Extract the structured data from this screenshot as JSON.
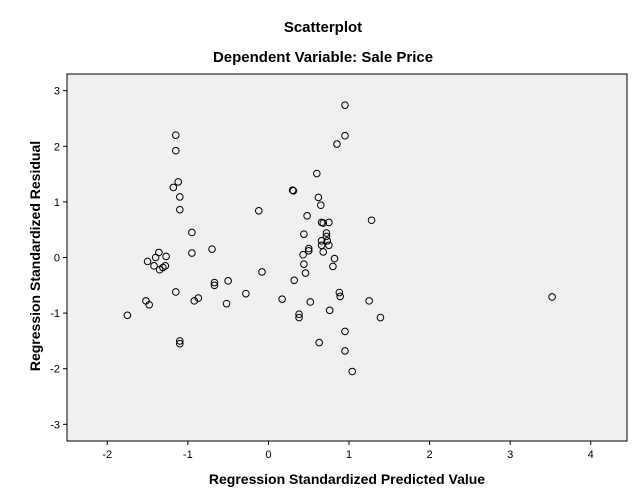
{
  "chart_data": {
    "type": "scatter",
    "title": "Scatterplot",
    "subtitle": "Dependent Variable: Sale Price",
    "xlabel": "Regression Standardized Predicted Value",
    "ylabel": "Regression Standardized Residual",
    "xlim": [
      -2.5,
      4.45
    ],
    "ylim": [
      -3.3,
      3.3
    ],
    "xticks": [
      "-2",
      "-1",
      "0",
      "1",
      "2",
      "3",
      "4"
    ],
    "yticks": [
      "3",
      "2",
      "1",
      "0",
      "-1",
      "-2",
      "-3"
    ],
    "grid": false,
    "background": "#f0f0f0",
    "marker_color": "#000000",
    "points": [
      [
        -1.75,
        -1.04
      ],
      [
        -1.52,
        -0.78
      ],
      [
        -1.48,
        -0.85
      ],
      [
        -1.5,
        -0.07
      ],
      [
        -1.42,
        -0.15
      ],
      [
        -1.4,
        0.0
      ],
      [
        -1.36,
        0.09
      ],
      [
        -1.35,
        -0.22
      ],
      [
        -1.31,
        -0.18
      ],
      [
        -1.28,
        -0.15
      ],
      [
        -1.27,
        0.02
      ],
      [
        -1.18,
        1.26
      ],
      [
        -1.15,
        2.2
      ],
      [
        -1.15,
        1.92
      ],
      [
        -1.15,
        -0.62
      ],
      [
        -1.12,
        1.36
      ],
      [
        -1.1,
        1.09
      ],
      [
        -1.1,
        0.86
      ],
      [
        -1.1,
        -1.5
      ],
      [
        -1.1,
        -1.55
      ],
      [
        -0.95,
        0.45
      ],
      [
        -0.95,
        0.08
      ],
      [
        -0.92,
        -0.78
      ],
      [
        -0.87,
        -0.73
      ],
      [
        -0.7,
        0.15
      ],
      [
        -0.67,
        -0.45
      ],
      [
        -0.67,
        -0.5
      ],
      [
        -0.52,
        -0.83
      ],
      [
        -0.5,
        -0.42
      ],
      [
        -0.28,
        -0.65
      ],
      [
        -0.12,
        0.84
      ],
      [
        -0.08,
        -0.26
      ],
      [
        0.17,
        -0.75
      ],
      [
        0.3,
        1.21
      ],
      [
        0.31,
        1.2
      ],
      [
        0.32,
        -0.41
      ],
      [
        0.38,
        -1.02
      ],
      [
        0.38,
        -1.08
      ],
      [
        0.43,
        0.05
      ],
      [
        0.44,
        0.42
      ],
      [
        0.44,
        -0.12
      ],
      [
        0.46,
        -0.28
      ],
      [
        0.48,
        0.75
      ],
      [
        0.5,
        0.16
      ],
      [
        0.5,
        0.12
      ],
      [
        0.52,
        -0.8
      ],
      [
        0.6,
        1.51
      ],
      [
        0.62,
        1.08
      ],
      [
        0.63,
        -1.53
      ],
      [
        0.65,
        0.94
      ],
      [
        0.66,
        0.63
      ],
      [
        0.68,
        0.62
      ],
      [
        0.66,
        0.3
      ],
      [
        0.66,
        0.22
      ],
      [
        0.68,
        0.1
      ],
      [
        0.72,
        0.44
      ],
      [
        0.72,
        0.38
      ],
      [
        0.73,
        0.3
      ],
      [
        0.75,
        0.63
      ],
      [
        0.75,
        0.22
      ],
      [
        0.76,
        -0.95
      ],
      [
        0.8,
        -0.16
      ],
      [
        0.82,
        -0.02
      ],
      [
        0.85,
        2.04
      ],
      [
        0.88,
        -0.63
      ],
      [
        0.89,
        -0.7
      ],
      [
        0.95,
        2.74
      ],
      [
        0.95,
        2.19
      ],
      [
        0.95,
        -1.33
      ],
      [
        0.95,
        -1.68
      ],
      [
        1.04,
        -2.05
      ],
      [
        1.25,
        -0.78
      ],
      [
        1.28,
        0.67
      ],
      [
        1.39,
        -1.08
      ],
      [
        3.52,
        -0.71
      ]
    ]
  }
}
